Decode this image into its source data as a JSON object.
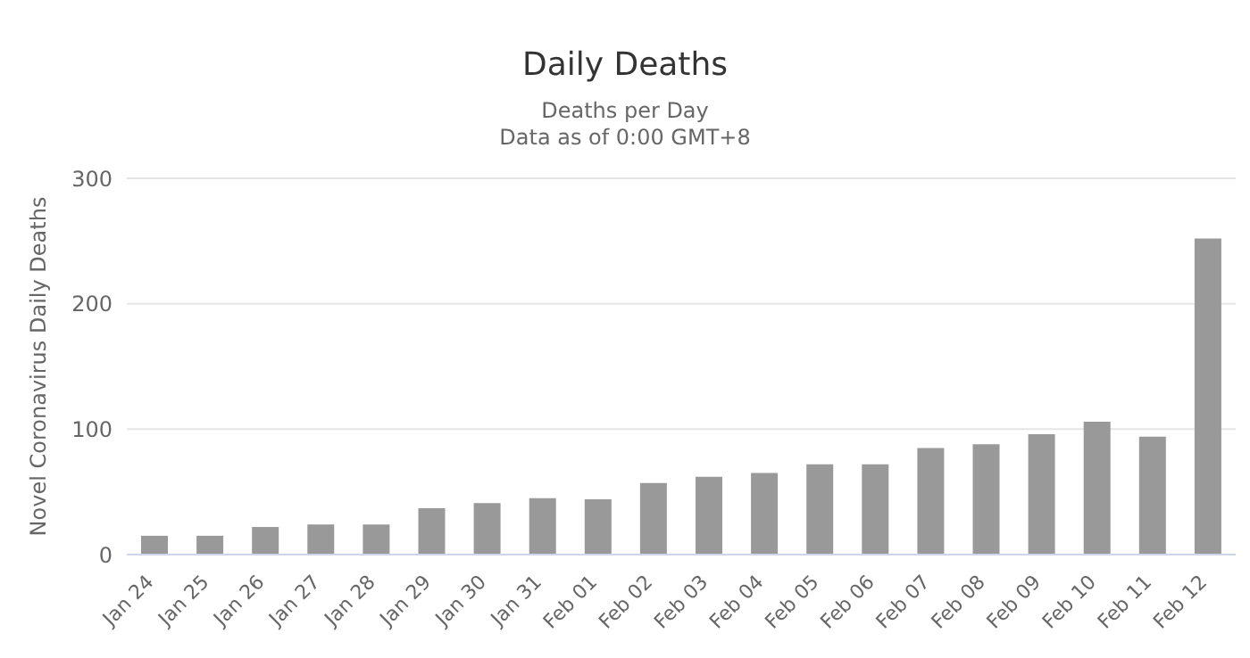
{
  "chart_data": {
    "type": "bar",
    "title": "Daily Deaths",
    "subtitle": "Deaths per Day\nData as of 0:00 GMT+8",
    "ylabel": "Novel Coronavirus Daily Deaths",
    "categories": [
      "Jan 24",
      "Jan 25",
      "Jan 26",
      "Jan 27",
      "Jan 28",
      "Jan 29",
      "Jan 30",
      "Jan 31",
      "Feb 01",
      "Feb 02",
      "Feb 03",
      "Feb 04",
      "Feb 05",
      "Feb 06",
      "Feb 07",
      "Feb 08",
      "Feb 09",
      "Feb 10",
      "Feb 11",
      "Feb 12"
    ],
    "values": [
      15,
      15,
      22,
      24,
      24,
      37,
      41,
      45,
      44,
      57,
      62,
      65,
      72,
      72,
      85,
      88,
      96,
      106,
      94,
      252
    ],
    "color": "#999999",
    "ylim": [
      0,
      300
    ],
    "yticks": [
      0,
      100,
      200,
      300
    ],
    "grid": "y",
    "legend": false
  }
}
